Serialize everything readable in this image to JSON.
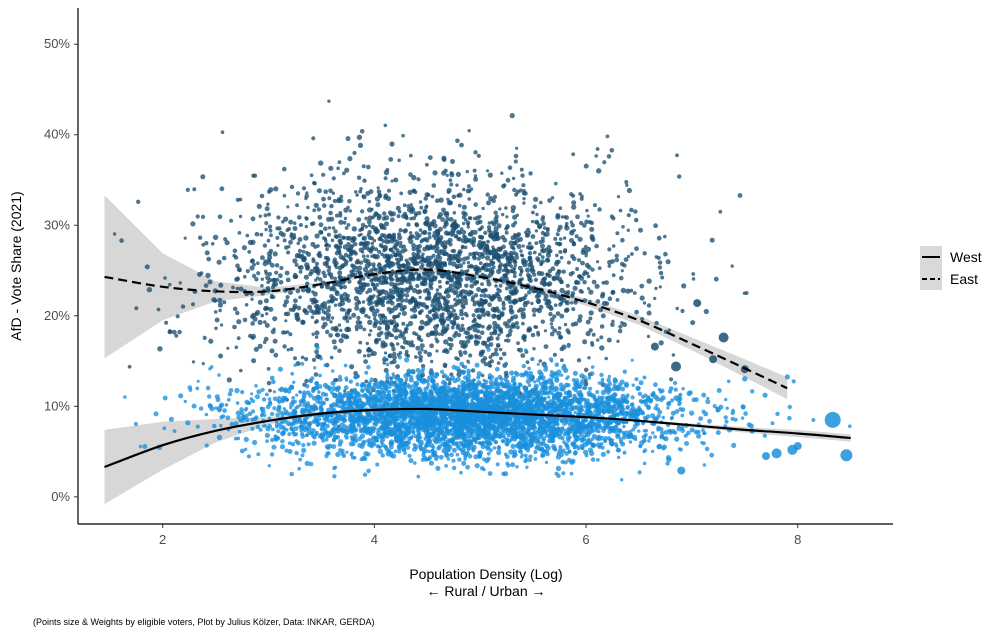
{
  "chart_data": {
    "type": "scatter",
    "xlabel": "Population Density (Log)",
    "xlabel_sub": "← Rural / Urban →",
    "ylabel": "AfD - Vote Share (2021)",
    "caption": "(Points size & Weights by eligible voters, Plot by Julius Kölzer, Data: INKAR, GERDA)",
    "xlim": [
      1.2,
      8.9
    ],
    "ylim": [
      -3,
      54
    ],
    "x_ticks": [
      2,
      4,
      6,
      8
    ],
    "y_ticks": [
      0,
      10,
      20,
      30,
      40,
      50
    ],
    "y_tick_labels": [
      "0%",
      "10%",
      "20%",
      "30%",
      "40%",
      "50%"
    ],
    "grid": false,
    "legend_position": "right",
    "series": [
      {
        "name": "West",
        "color": "#1a8fdc",
        "line_style": "solid",
        "point_cloud": {
          "n": 4200,
          "x_center": 4.9,
          "x_spread": 0.95,
          "x_min": 1.5,
          "x_max": 8.5,
          "y_center": 9.0,
          "y_spread": 2.2
        },
        "trend": {
          "x": [
            1.45,
            2.0,
            2.5,
            3.0,
            3.5,
            4.0,
            4.5,
            5.0,
            5.5,
            6.0,
            6.5,
            7.0,
            7.5,
            8.0,
            8.5
          ],
          "y": [
            3.3,
            5.7,
            7.3,
            8.4,
            9.2,
            9.6,
            9.7,
            9.4,
            9.1,
            8.8,
            8.4,
            7.9,
            7.4,
            7.0,
            6.5
          ]
        },
        "ci": {
          "x": [
            1.45,
            2.0,
            2.5,
            3.0,
            3.5,
            4.0,
            4.5,
            5.0,
            5.5,
            6.0,
            6.5,
            7.0,
            7.5,
            8.0,
            8.5
          ],
          "lower": [
            -0.8,
            3.0,
            6.0,
            8.0,
            9.0,
            9.5,
            9.6,
            9.3,
            9.0,
            8.7,
            8.3,
            7.7,
            7.1,
            6.6,
            6.1
          ],
          "upper": [
            7.4,
            8.3,
            8.6,
            8.8,
            9.4,
            9.7,
            9.8,
            9.5,
            9.2,
            8.9,
            8.5,
            8.1,
            7.7,
            7.4,
            6.9
          ]
        },
        "large_points": [
          [
            8.33,
            8.5,
            8
          ],
          [
            8.46,
            4.6,
            6
          ],
          [
            7.95,
            5.2,
            5
          ],
          [
            7.8,
            4.8,
            5
          ],
          [
            8.0,
            5.6,
            4
          ],
          [
            6.9,
            2.9,
            4
          ],
          [
            7.7,
            4.5,
            4
          ]
        ]
      },
      {
        "name": "East",
        "color": "#1b4f72",
        "line_style": "dashed",
        "point_cloud": {
          "n": 2700,
          "x_center": 4.5,
          "x_spread": 0.95,
          "x_min": 1.5,
          "x_max": 7.9,
          "y_center": 24.5,
          "y_spread": 5.5
        },
        "trend": {
          "x": [
            1.45,
            2.0,
            2.5,
            3.0,
            3.5,
            4.0,
            4.5,
            5.0,
            5.5,
            6.0,
            6.5,
            7.0,
            7.5,
            7.9
          ],
          "y": [
            24.3,
            23.2,
            22.7,
            22.7,
            23.5,
            24.6,
            25.1,
            24.3,
            23.1,
            21.5,
            19.5,
            16.9,
            14.2,
            12.0
          ]
        },
        "ci": {
          "x": [
            1.45,
            2.0,
            2.5,
            3.0,
            3.5,
            4.0,
            4.5,
            5.0,
            5.5,
            6.0,
            6.5,
            7.0,
            7.5,
            7.9
          ],
          "lower": [
            15.3,
            19.5,
            21.6,
            22.3,
            23.3,
            24.4,
            24.8,
            24.0,
            22.8,
            21.1,
            19.0,
            16.2,
            13.2,
            10.8
          ],
          "upper": [
            33.3,
            26.9,
            23.8,
            23.1,
            23.7,
            24.8,
            25.4,
            24.6,
            23.4,
            21.9,
            20.0,
            17.6,
            15.2,
            13.2
          ]
        },
        "large_points": [
          [
            7.3,
            17.6,
            5
          ],
          [
            6.65,
            16.6,
            4
          ],
          [
            6.85,
            14.4,
            5
          ],
          [
            7.05,
            21.4,
            4
          ],
          [
            7.5,
            14.1,
            4
          ],
          [
            7.2,
            15.2,
            4
          ]
        ]
      }
    ]
  }
}
